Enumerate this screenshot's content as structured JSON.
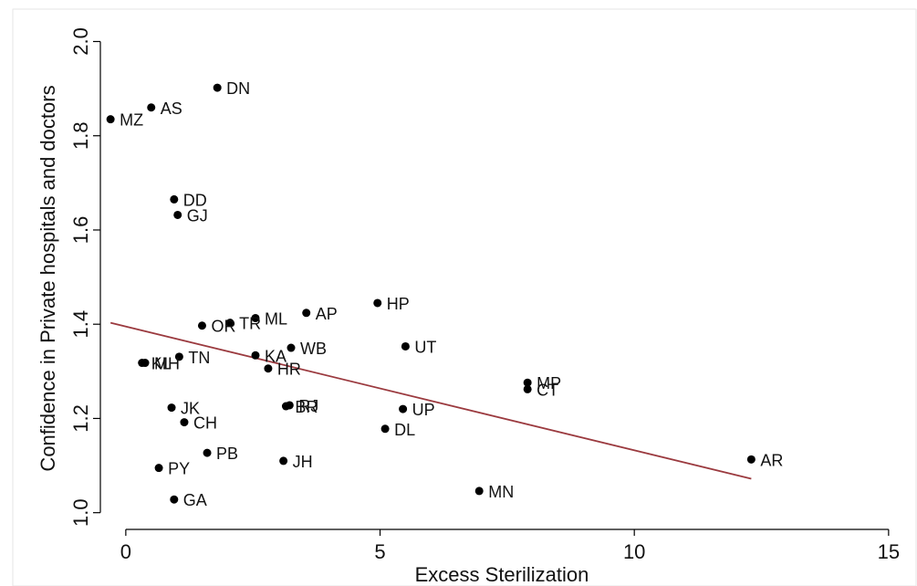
{
  "chart_data": {
    "type": "scatter",
    "title": "",
    "xlabel": "Excess Sterilization",
    "ylabel": "Confidence in Private hospitals and doctors",
    "xlim": [
      -0.5,
      15.2
    ],
    "ylim": [
      0.98,
      2.03
    ],
    "xticks": [
      0,
      5,
      10,
      15
    ],
    "yticks": [
      "1.0",
      "1.2",
      "1.4",
      "1.6",
      "1.8",
      "2.0"
    ],
    "grid": false,
    "marker_color": "#000000",
    "fit_line_color": "#9b3a3f",
    "points": [
      {
        "label": "DN",
        "x": 1.8,
        "y": 1.902
      },
      {
        "label": "AS",
        "x": 0.5,
        "y": 1.86
      },
      {
        "label": "MZ",
        "x": -0.3,
        "y": 1.835
      },
      {
        "label": "DD",
        "x": 0.95,
        "y": 1.665
      },
      {
        "label": "GJ",
        "x": 1.02,
        "y": 1.632
      },
      {
        "label": "HP",
        "x": 4.95,
        "y": 1.445
      },
      {
        "label": "AP",
        "x": 3.55,
        "y": 1.424
      },
      {
        "label": "ML",
        "x": 2.55,
        "y": 1.413
      },
      {
        "label": "TR",
        "x": 2.05,
        "y": 1.403
      },
      {
        "label": "OR",
        "x": 1.5,
        "y": 1.397
      },
      {
        "label": "UT",
        "x": 5.5,
        "y": 1.353
      },
      {
        "label": "WB",
        "x": 3.25,
        "y": 1.35
      },
      {
        "label": "KA",
        "x": 2.55,
        "y": 1.334
      },
      {
        "label": "TN",
        "x": 1.05,
        "y": 1.331
      },
      {
        "label": "KL",
        "x": 0.32,
        "y": 1.318
      },
      {
        "label": "MH",
        "x": 0.38,
        "y": 1.318
      },
      {
        "label": "HR",
        "x": 2.8,
        "y": 1.306
      },
      {
        "label": "MP",
        "x": 7.9,
        "y": 1.276
      },
      {
        "label": "CT",
        "x": 7.9,
        "y": 1.262
      },
      {
        "label": "BR",
        "x": 3.15,
        "y": 1.226
      },
      {
        "label": "RJ",
        "x": 3.22,
        "y": 1.228
      },
      {
        "label": "JK",
        "x": 0.9,
        "y": 1.223
      },
      {
        "label": "UP",
        "x": 5.45,
        "y": 1.22
      },
      {
        "label": "CH",
        "x": 1.15,
        "y": 1.192
      },
      {
        "label": "DL",
        "x": 5.1,
        "y": 1.178
      },
      {
        "label": "PB",
        "x": 1.6,
        "y": 1.127
      },
      {
        "label": "AR",
        "x": 12.3,
        "y": 1.113
      },
      {
        "label": "JH",
        "x": 3.1,
        "y": 1.11
      },
      {
        "label": "PY",
        "x": 0.65,
        "y": 1.095
      },
      {
        "label": "MN",
        "x": 6.95,
        "y": 1.046
      },
      {
        "label": "GA",
        "x": 0.95,
        "y": 1.028
      }
    ],
    "fit_line": {
      "x": [
        -0.3,
        12.3
      ],
      "y": [
        1.403,
        1.072
      ]
    }
  }
}
